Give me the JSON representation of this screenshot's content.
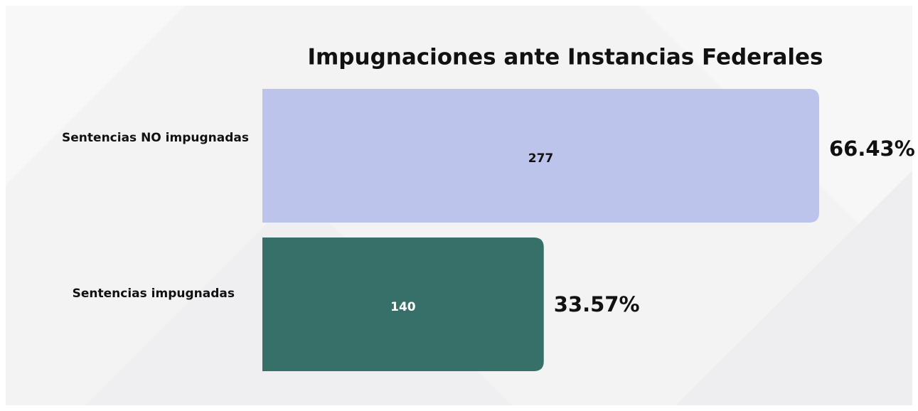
{
  "chart_data": {
    "type": "bar",
    "orientation": "horizontal",
    "title": "Impugnaciones ante Instancias Federales",
    "categories": [
      "Sentencias NO impugnadas",
      "Sentencias impugnadas"
    ],
    "values": [
      277,
      140
    ],
    "colors": [
      "#bcc4eb",
      "#377068"
    ],
    "shares": [
      66.43,
      33.57
    ],
    "share_labels": [
      "66.43%",
      "33.57%"
    ]
  }
}
